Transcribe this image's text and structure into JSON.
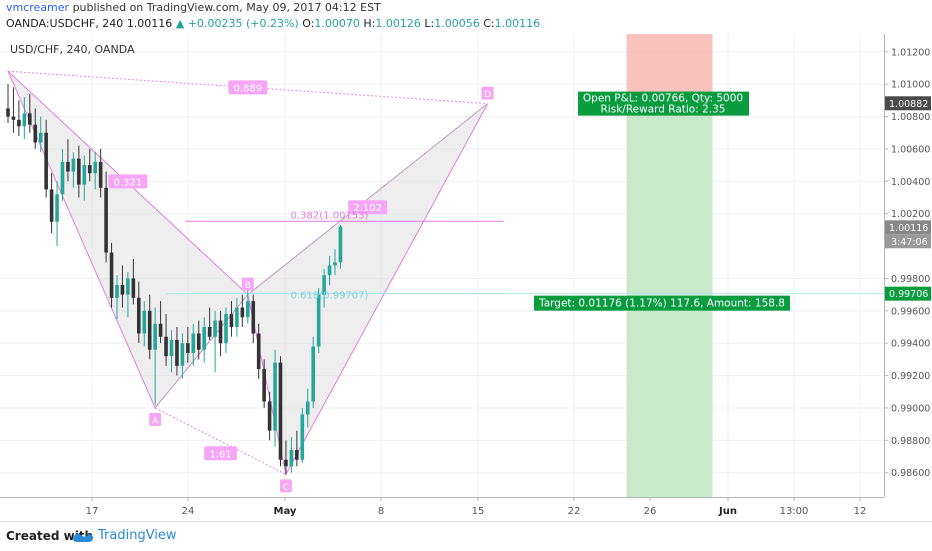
{
  "header": {
    "author": "vmcreamer",
    "published_text": " published on TradingView.com, May 09, 2017 04:12 EST",
    "symbol_line": "OANDA:USDCHF, 240",
    "last": "1.00116",
    "change": "▲ +0.00235 (+0.23%)",
    "o_label": "O:",
    "o_val": "1.00070",
    "h_label": "H:",
    "h_val": "1.00126",
    "l_label": "L:",
    "l_val": "1.00056",
    "c_label": "C:",
    "c_val": "1.00116"
  },
  "footer": {
    "created": "Created with",
    "brand": "TradingView"
  },
  "colors": {
    "up": "#26a69a",
    "down": "#333333",
    "pattern": "#e57be5",
    "pattern_fill": "#d9d9d9",
    "target": "#089c3f",
    "risk": "#f8b7b2",
    "reward": "#bfe6c1"
  },
  "chart_data": {
    "type": "candlestick",
    "title": "USD/CHF, 240, OANDA",
    "xlabel": "",
    "ylabel": "",
    "ylim": [
      0.9845,
      1.0131
    ],
    "x_ticks": [
      "17",
      "24",
      "May",
      "8",
      "15",
      "22",
      "26",
      "Jun",
      "13:00",
      "12"
    ],
    "y_ticks": [
      "1.01200",
      "1.01000",
      "1.00800",
      "1.00600",
      "1.00400",
      "1.00200",
      "0.99800",
      "0.99600",
      "0.99400",
      "0.99200",
      "0.99000",
      "0.98800",
      "0.98600"
    ],
    "price_tags": [
      {
        "value": 1.00882,
        "label": "1.00882",
        "style": "dark"
      },
      {
        "value": 1.00116,
        "label": "1.00116",
        "style": "gray"
      },
      {
        "value": 0.99706,
        "label": "0.99706",
        "style": "green"
      }
    ],
    "countdown": "3:47:06",
    "pattern_points": [
      {
        "label": "",
        "bar": 0,
        "price": 1.0108
      },
      {
        "label": "A",
        "bar": 27,
        "price": 0.99
      },
      {
        "label": "B",
        "bar": 44,
        "price": 0.997
      },
      {
        "label": "C",
        "bar": 51,
        "price": 0.9859
      },
      {
        "label": "D",
        "bar": 88,
        "price": 1.0088
      }
    ],
    "ratios": [
      {
        "label": "0.889",
        "bar": 44,
        "price": 1.0098
      },
      {
        "label": "0.321",
        "bar": 22,
        "price": 1.004
      },
      {
        "label": "1.61",
        "bar": 39,
        "price": 0.9872
      },
      {
        "label": "2.102",
        "bar": 66,
        "price": 1.0024
      }
    ],
    "fib_levels": [
      {
        "label": "0.382(1.00153)",
        "price": 1.00153,
        "from_bar": 27,
        "to_bar": 88,
        "color": "#e57be5"
      },
      {
        "label": "0.618(0.99707)",
        "price": 0.99707,
        "from_bar": 29,
        "to_bar": 88,
        "color": "#7fe0e0"
      }
    ],
    "position": {
      "entry": 0.99706,
      "stop": 1.0131,
      "target": 0.9845,
      "from_bar": 90,
      "to_bar": 103,
      "pnl_label": "Open P&L: 0.00766, Qty: 5000",
      "rr_label": "Risk/Reward Ratio: 2.35",
      "target_label": "Target: 0.01176 (1.17%) 117.6, Amount: 158.8"
    },
    "candles": [
      {
        "o": 1.0085,
        "h": 1.01,
        "l": 1.0076,
        "c": 1.008
      },
      {
        "o": 1.008,
        "h": 1.0098,
        "l": 1.007,
        "c": 1.0078
      },
      {
        "o": 1.0078,
        "h": 1.009,
        "l": 1.0068,
        "c": 1.0074
      },
      {
        "o": 1.0074,
        "h": 1.0092,
        "l": 1.0066,
        "c": 1.0082
      },
      {
        "o": 1.0082,
        "h": 1.0094,
        "l": 1.007,
        "c": 1.0075
      },
      {
        "o": 1.0075,
        "h": 1.0085,
        "l": 1.006,
        "c": 1.0064
      },
      {
        "o": 1.0064,
        "h": 1.008,
        "l": 1.0058,
        "c": 1.007
      },
      {
        "o": 1.007,
        "h": 1.0078,
        "l": 1.003,
        "c": 1.0035
      },
      {
        "o": 1.0035,
        "h": 1.0045,
        "l": 1.0008,
        "c": 1.0015
      },
      {
        "o": 1.0015,
        "h": 1.004,
        "l": 1.0,
        "c": 1.0032
      },
      {
        "o": 1.0032,
        "h": 1.006,
        "l": 1.0028,
        "c": 1.0052
      },
      {
        "o": 1.0052,
        "h": 1.0066,
        "l": 1.004,
        "c": 1.0046
      },
      {
        "o": 1.0046,
        "h": 1.0058,
        "l": 1.0036,
        "c": 1.0054
      },
      {
        "o": 1.0054,
        "h": 1.0062,
        "l": 1.003,
        "c": 1.0038
      },
      {
        "o": 1.0038,
        "h": 1.0056,
        "l": 1.0028,
        "c": 1.005
      },
      {
        "o": 1.005,
        "h": 1.006,
        "l": 1.004,
        "c": 1.0045
      },
      {
        "o": 1.0045,
        "h": 1.0058,
        "l": 1.0035,
        "c": 1.0052
      },
      {
        "o": 1.0052,
        "h": 1.006,
        "l": 1.003,
        "c": 1.0036
      },
      {
        "o": 1.0036,
        "h": 1.0046,
        "l": 0.999,
        "c": 0.9996
      },
      {
        "o": 0.9996,
        "h": 1.0002,
        "l": 0.9962,
        "c": 0.9968
      },
      {
        "o": 0.9968,
        "h": 0.9982,
        "l": 0.9955,
        "c": 0.9976
      },
      {
        "o": 0.9976,
        "h": 0.9988,
        "l": 0.9962,
        "c": 0.997
      },
      {
        "o": 0.997,
        "h": 0.9984,
        "l": 0.9956,
        "c": 0.998
      },
      {
        "o": 0.998,
        "h": 0.9992,
        "l": 0.9964,
        "c": 0.9968
      },
      {
        "o": 0.9968,
        "h": 0.9978,
        "l": 0.994,
        "c": 0.9946
      },
      {
        "o": 0.9946,
        "h": 0.9966,
        "l": 0.9938,
        "c": 0.996
      },
      {
        "o": 0.996,
        "h": 0.997,
        "l": 0.993,
        "c": 0.9936
      },
      {
        "o": 0.9936,
        "h": 0.9962,
        "l": 0.9902,
        "c": 0.9952
      },
      {
        "o": 0.9952,
        "h": 0.9966,
        "l": 0.994,
        "c": 0.9944
      },
      {
        "o": 0.9944,
        "h": 0.9958,
        "l": 0.9926,
        "c": 0.9932
      },
      {
        "o": 0.9932,
        "h": 0.9948,
        "l": 0.9922,
        "c": 0.9942
      },
      {
        "o": 0.9942,
        "h": 0.995,
        "l": 0.992,
        "c": 0.9926
      },
      {
        "o": 0.9926,
        "h": 0.9946,
        "l": 0.9918,
        "c": 0.994
      },
      {
        "o": 0.994,
        "h": 0.995,
        "l": 0.9928,
        "c": 0.9934
      },
      {
        "o": 0.9934,
        "h": 0.9952,
        "l": 0.9926,
        "c": 0.9946
      },
      {
        "o": 0.9946,
        "h": 0.9954,
        "l": 0.993,
        "c": 0.9936
      },
      {
        "o": 0.9936,
        "h": 0.9956,
        "l": 0.9928,
        "c": 0.995
      },
      {
        "o": 0.995,
        "h": 0.9962,
        "l": 0.9942,
        "c": 0.9944
      },
      {
        "o": 0.9944,
        "h": 0.996,
        "l": 0.9922,
        "c": 0.9954
      },
      {
        "o": 0.9954,
        "h": 0.996,
        "l": 0.9932,
        "c": 0.994
      },
      {
        "o": 0.994,
        "h": 0.9962,
        "l": 0.9934,
        "c": 0.9958
      },
      {
        "o": 0.9958,
        "h": 0.9966,
        "l": 0.9944,
        "c": 0.995
      },
      {
        "o": 0.995,
        "h": 0.9968,
        "l": 0.9944,
        "c": 0.9962
      },
      {
        "o": 0.9962,
        "h": 0.997,
        "l": 0.995,
        "c": 0.9956
      },
      {
        "o": 0.9956,
        "h": 0.9974,
        "l": 0.9952,
        "c": 0.9966
      },
      {
        "o": 0.9966,
        "h": 0.997,
        "l": 0.994,
        "c": 0.9946
      },
      {
        "o": 0.9946,
        "h": 0.9952,
        "l": 0.9918,
        "c": 0.9924
      },
      {
        "o": 0.9924,
        "h": 0.993,
        "l": 0.99,
        "c": 0.9904
      },
      {
        "o": 0.9904,
        "h": 0.991,
        "l": 0.988,
        "c": 0.9886
      },
      {
        "o": 0.9886,
        "h": 0.9936,
        "l": 0.9876,
        "c": 0.9928
      },
      {
        "o": 0.9928,
        "h": 0.9932,
        "l": 0.9864,
        "c": 0.9868
      },
      {
        "o": 0.9868,
        "h": 0.988,
        "l": 0.9859,
        "c": 0.9864
      },
      {
        "o": 0.9864,
        "h": 0.9882,
        "l": 0.986,
        "c": 0.9874
      },
      {
        "o": 0.9874,
        "h": 0.9886,
        "l": 0.9864,
        "c": 0.9868
      },
      {
        "o": 0.9868,
        "h": 0.99,
        "l": 0.9866,
        "c": 0.9896
      },
      {
        "o": 0.9896,
        "h": 0.9912,
        "l": 0.9888,
        "c": 0.9904
      },
      {
        "o": 0.9904,
        "h": 0.9944,
        "l": 0.99,
        "c": 0.9938
      },
      {
        "o": 0.9938,
        "h": 0.9974,
        "l": 0.9934,
        "c": 0.997
      },
      {
        "o": 0.997,
        "h": 0.9986,
        "l": 0.9962,
        "c": 0.9982
      },
      {
        "o": 0.9982,
        "h": 0.9994,
        "l": 0.9976,
        "c": 0.9988
      },
      {
        "o": 0.9988,
        "h": 0.9998,
        "l": 0.9982,
        "c": 0.999
      },
      {
        "o": 0.999,
        "h": 1.0013,
        "l": 0.9986,
        "c": 1.0012
      }
    ]
  }
}
